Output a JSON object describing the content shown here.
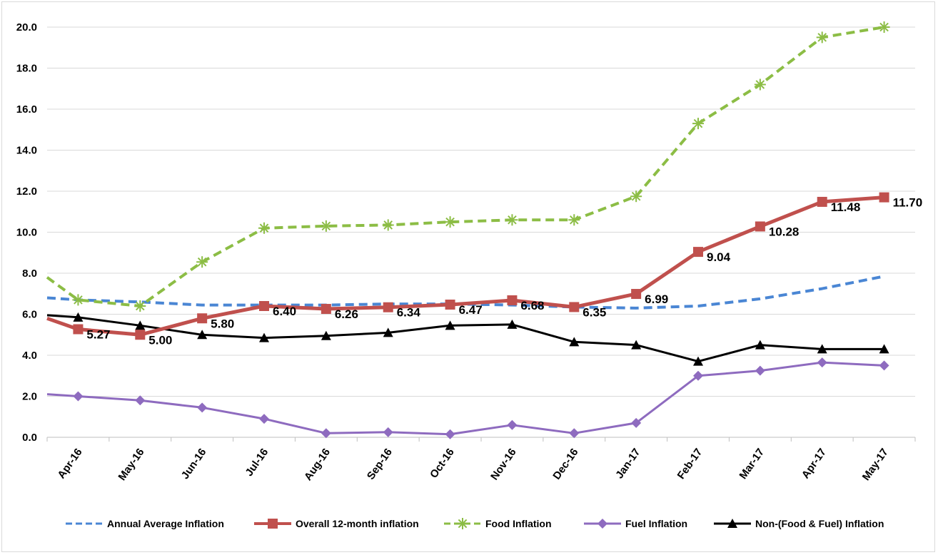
{
  "chart_data": {
    "type": "line",
    "title": "",
    "xlabel": "",
    "ylabel": "",
    "ylim": [
      0,
      20
    ],
    "yticks": [
      "0.0",
      "2.0",
      "4.0",
      "6.0",
      "8.0",
      "10.0",
      "12.0",
      "14.0",
      "16.0",
      "18.0",
      "20.0"
    ],
    "categories": [
      "Apr-16",
      "May-16",
      "Jun-16",
      "Jul-16",
      "Aug-16",
      "Sep-16",
      "Oct-16",
      "Nov-16",
      "Dec-16",
      "Jan-17",
      "Feb-17",
      "Mar-17",
      "Apr-17",
      "May-17"
    ],
    "grid": "horizontal",
    "legend_position": "bottom",
    "series": [
      {
        "name": "Annual Average Inflation",
        "color": "#4a86d4",
        "style": "dashed",
        "marker": "none",
        "start_value": 6.8,
        "values": [
          6.7,
          6.6,
          6.45,
          6.45,
          6.45,
          6.5,
          6.5,
          6.45,
          6.35,
          6.3,
          6.4,
          6.75,
          7.25,
          7.85
        ],
        "labels": []
      },
      {
        "name": "Overall 12-month inflation",
        "color": "#c0504d",
        "style": "solid",
        "marker": "square",
        "start_value": 5.8,
        "values": [
          5.27,
          5.0,
          5.8,
          6.4,
          6.26,
          6.34,
          6.47,
          6.68,
          6.35,
          6.99,
          9.04,
          10.28,
          11.48,
          11.7
        ],
        "labels": [
          "5.27",
          "5.00",
          "5.80",
          "6.40",
          "6.26",
          "6.34",
          "6.47",
          "6.68",
          "6.35",
          "6.99",
          "9.04",
          "10.28",
          "11.48",
          "11.70"
        ]
      },
      {
        "name": "Food Inflation",
        "color": "#8cbd45",
        "style": "dashed",
        "marker": "asterisk",
        "start_value": 7.8,
        "values": [
          6.7,
          6.4,
          8.55,
          10.2,
          10.3,
          10.35,
          10.5,
          10.6,
          10.6,
          11.75,
          15.3,
          17.2,
          19.5,
          20.0
        ],
        "labels": []
      },
      {
        "name": "Fuel Inflation",
        "color": "#8e6bbf",
        "style": "solid",
        "marker": "diamond",
        "start_value": 2.1,
        "values": [
          2.0,
          1.8,
          1.45,
          0.9,
          0.2,
          0.25,
          0.15,
          0.6,
          0.2,
          0.7,
          3.0,
          3.25,
          3.65,
          3.5
        ],
        "labels": []
      },
      {
        "name": "Non-(Food & Fuel) Inflation",
        "color": "#000000",
        "style": "solid",
        "marker": "triangle",
        "start_value": 5.95,
        "values": [
          5.85,
          5.45,
          5.0,
          4.85,
          4.95,
          5.1,
          5.45,
          5.5,
          4.65,
          4.5,
          3.7,
          4.5,
          4.3,
          4.3
        ],
        "labels": []
      }
    ]
  }
}
